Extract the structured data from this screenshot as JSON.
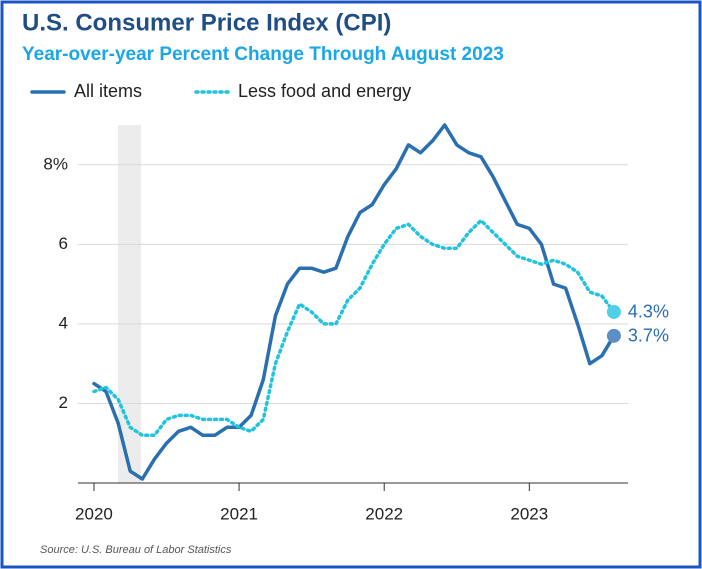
{
  "chart_data": {
    "type": "line",
    "title": "U.S. Consumer Price Index (CPI)",
    "subtitle": "Year-over-year Percent Change Through August 2023",
    "source": "Source: U.S. Bureau of Labor Statistics",
    "x": [
      2020,
      2020.083,
      2020.167,
      2020.25,
      2020.333,
      2020.417,
      2020.5,
      2020.583,
      2020.667,
      2020.75,
      2020.833,
      2020.917,
      2021,
      2021.083,
      2021.167,
      2021.25,
      2021.333,
      2021.417,
      2021.5,
      2021.583,
      2021.667,
      2021.75,
      2021.833,
      2021.917,
      2022,
      2022.083,
      2022.167,
      2022.25,
      2022.333,
      2022.417,
      2022.5,
      2022.583,
      2022.667,
      2022.75,
      2022.833,
      2022.917,
      2023,
      2023.083,
      2023.167,
      2023.25,
      2023.333,
      2023.417,
      2023.5,
      2023.583
    ],
    "series": [
      {
        "name": "All items",
        "color": "#2a6fb0",
        "style": "solid",
        "end_color": "#5b8fc6",
        "values": [
          2.5,
          2.3,
          1.5,
          0.3,
          0.1,
          0.6,
          1.0,
          1.3,
          1.4,
          1.2,
          1.2,
          1.4,
          1.4,
          1.7,
          2.6,
          4.2,
          5.0,
          5.4,
          5.4,
          5.3,
          5.4,
          6.2,
          6.8,
          7.0,
          7.5,
          7.9,
          8.5,
          8.3,
          8.6,
          9.0,
          8.5,
          8.3,
          8.2,
          7.7,
          7.1,
          6.5,
          6.4,
          6.0,
          5.0,
          4.9,
          4.0,
          3.0,
          3.2,
          3.7
        ],
        "value_labels": [
          null,
          null,
          null,
          null,
          null,
          null,
          null,
          null,
          null,
          null,
          null,
          null,
          null,
          null,
          null,
          null,
          null,
          null,
          null,
          null,
          null,
          null,
          null,
          null,
          null,
          null,
          null,
          null,
          null,
          null,
          null,
          null,
          null,
          null,
          null,
          null,
          null,
          null,
          null,
          null,
          null,
          null,
          null,
          "3.7%"
        ]
      },
      {
        "name": "Less food and energy",
        "color": "#22c3dc",
        "style": "dotted",
        "end_color": "#4fd0e8",
        "values": [
          2.3,
          2.4,
          2.1,
          1.4,
          1.2,
          1.2,
          1.6,
          1.7,
          1.7,
          1.6,
          1.6,
          1.6,
          1.4,
          1.3,
          1.6,
          3.0,
          3.8,
          4.5,
          4.3,
          4.0,
          4.0,
          4.6,
          4.9,
          5.5,
          6.0,
          6.4,
          6.5,
          6.2,
          6.0,
          5.9,
          5.9,
          6.3,
          6.6,
          6.3,
          6.0,
          5.7,
          5.6,
          5.5,
          5.6,
          5.5,
          5.3,
          4.8,
          4.7,
          4.3
        ],
        "value_labels": [
          null,
          null,
          null,
          null,
          null,
          null,
          null,
          null,
          null,
          null,
          null,
          null,
          null,
          null,
          null,
          null,
          null,
          null,
          null,
          null,
          null,
          null,
          null,
          null,
          null,
          null,
          null,
          null,
          null,
          null,
          null,
          null,
          null,
          null,
          null,
          null,
          null,
          null,
          null,
          null,
          null,
          null,
          null,
          "4.3%"
        ]
      }
    ],
    "xlim": [
      2019.89,
      2023.68
    ],
    "xticks": [
      2020,
      2021,
      2022,
      2023
    ],
    "ylim": [
      0,
      9
    ],
    "yticks": [
      2,
      4,
      6,
      {
        "value": 8,
        "label": "8%"
      }
    ],
    "grid": true,
    "legend": "top-left"
  }
}
